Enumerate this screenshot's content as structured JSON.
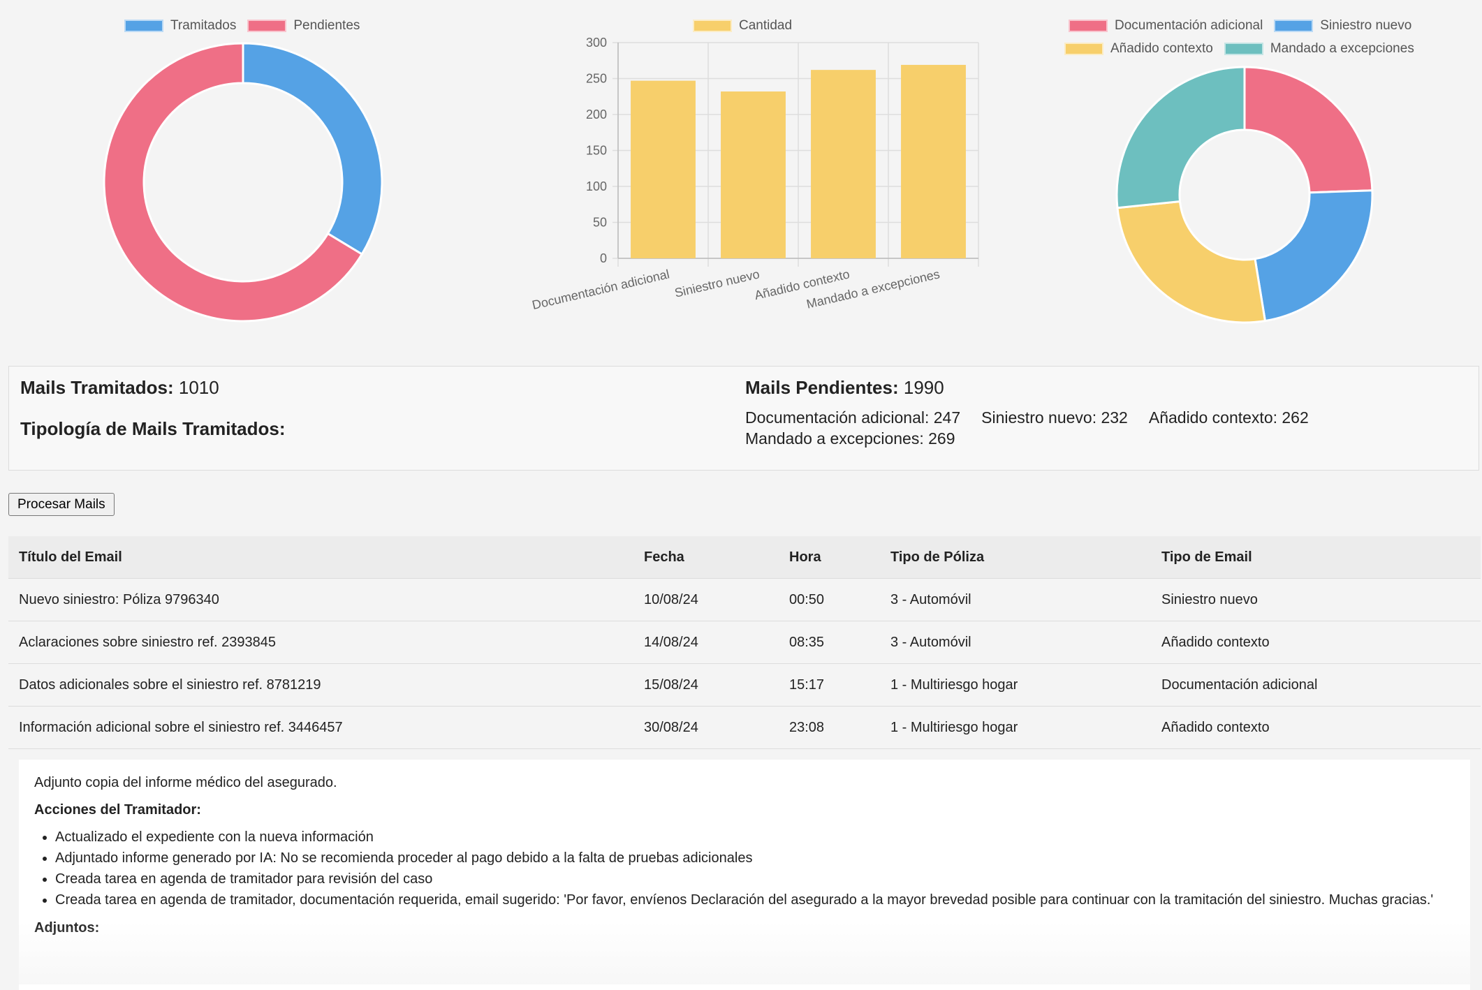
{
  "charts": {
    "donut_status": {
      "legend": [
        {
          "label": "Tramitados",
          "color": "#55a2e5"
        },
        {
          "label": "Pendientes",
          "color": "#ef6f86"
        }
      ]
    },
    "bar": {
      "legend_label": "Cantidad",
      "color": "#f7cf6b"
    },
    "donut_types": {
      "legend": [
        {
          "label": "Documentación adicional",
          "color": "#ef6f86"
        },
        {
          "label": "Siniestro nuevo",
          "color": "#55a2e5"
        },
        {
          "label": "Añadido contexto",
          "color": "#f7cf6b"
        },
        {
          "label": "Mandado a excepciones",
          "color": "#6dbfbf"
        }
      ]
    }
  },
  "chart_data": [
    {
      "type": "pie",
      "categories": [
        "Tramitados",
        "Pendientes"
      ],
      "values": [
        1010,
        1990
      ],
      "colors": [
        "#55a2e5",
        "#ef6f86"
      ]
    },
    {
      "type": "bar",
      "categories": [
        "Documentación adicional",
        "Siniestro nuevo",
        "Añadido contexto",
        "Mandado a excepciones"
      ],
      "series": [
        {
          "name": "Cantidad",
          "values": [
            247,
            232,
            262,
            269
          ]
        }
      ],
      "ylim": [
        0,
        300
      ],
      "yticks": [
        0,
        50,
        100,
        150,
        200,
        250,
        300
      ],
      "grid": true,
      "legend": "top"
    },
    {
      "type": "pie",
      "categories": [
        "Documentación adicional",
        "Siniestro nuevo",
        "Añadido contexto",
        "Mandado a excepciones"
      ],
      "values": [
        247,
        232,
        262,
        269
      ],
      "colors": [
        "#ef6f86",
        "#55a2e5",
        "#f7cf6b",
        "#6dbfbf"
      ]
    }
  ],
  "summary": {
    "tramitados_label": "Mails Tramitados:",
    "tramitados_value": "1010",
    "pendientes_label": "Mails Pendientes:",
    "pendientes_value": "1990",
    "tipologia_title": "Tipología de Mails Tramitados:",
    "counts": [
      "Documentación adicional: 247",
      "Siniestro nuevo: 232",
      "Añadido contexto: 262",
      "Mandado a excepciones: 269"
    ]
  },
  "process_button": "Procesar Mails",
  "table": {
    "headers": [
      "Título del Email",
      "Fecha",
      "Hora",
      "Tipo de Póliza",
      "Tipo de Email"
    ],
    "rows": [
      [
        "Nuevo siniestro: Póliza 9796340",
        "10/08/24",
        "00:50",
        "3 - Automóvil",
        "Siniestro nuevo"
      ],
      [
        "Aclaraciones sobre siniestro ref. 2393845",
        "14/08/24",
        "08:35",
        "3 - Automóvil",
        "Añadido contexto"
      ],
      [
        "Datos adicionales sobre el siniestro ref. 8781219",
        "15/08/24",
        "15:17",
        "1 - Multiriesgo hogar",
        "Documentación adicional"
      ],
      [
        "Información adicional sobre el siniestro ref. 3446457",
        "30/08/24",
        "23:08",
        "1 - Multiriesgo hogar",
        "Añadido contexto"
      ]
    ]
  },
  "detail": {
    "body": "Adjunto copia del informe médico del asegurado.",
    "actions_title": "Acciones del Tramitador:",
    "actions": [
      "Actualizado el expediente con la nueva información",
      "Adjuntado informe generado por IA: No se recomienda proceder al pago debido a la falta de pruebas adicionales",
      "Creada tarea en agenda de tramitador para revisión del caso",
      "Creada tarea en agenda de tramitador, documentación requerida, email sugerido: 'Por favor, envíenos Declaración del asegurado a la mayor brevedad posible para continuar con la tramitación del siniestro. Muchas gracias.'"
    ],
    "attachments_title": "Adjuntos:"
  }
}
